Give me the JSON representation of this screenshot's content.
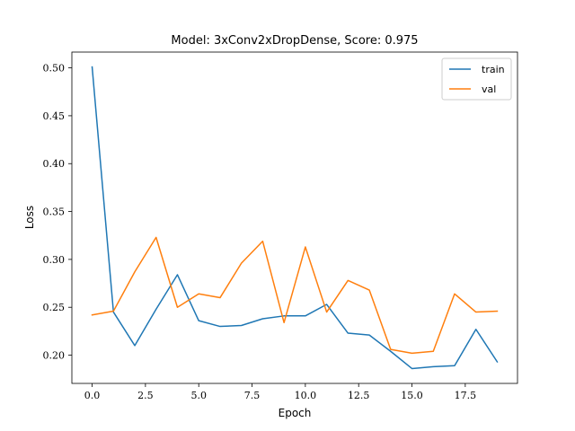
{
  "chart_data": {
    "type": "line",
    "title": "Model: 3xConv2xDropDense, Score: 0.975",
    "xlabel": "Epoch",
    "ylabel": "Loss",
    "x": [
      0,
      1,
      2,
      3,
      4,
      5,
      6,
      7,
      8,
      9,
      10,
      11,
      12,
      13,
      14,
      15,
      16,
      17,
      18,
      19
    ],
    "xlim": [
      -0.95,
      19.95
    ],
    "ylim": [
      0.1705,
      0.5165
    ],
    "xticks": [
      0,
      2.5,
      5,
      7.5,
      10,
      12.5,
      15,
      17.5
    ],
    "xtick_labels": [
      "0.0",
      "2.5",
      "5.0",
      "7.5",
      "10.0",
      "12.5",
      "15.0",
      "17.5"
    ],
    "yticks": [
      0.2,
      0.25,
      0.3,
      0.35,
      0.4,
      0.45,
      0.5
    ],
    "ytick_labels": [
      "0.20",
      "0.25",
      "0.30",
      "0.35",
      "0.40",
      "0.45",
      "0.50"
    ],
    "grid": false,
    "legend_position": "top-right",
    "series": [
      {
        "name": "train",
        "color": "#1f77b4",
        "values": [
          0.501,
          0.245,
          0.21,
          0.248,
          0.284,
          0.236,
          0.23,
          0.231,
          0.238,
          0.241,
          0.241,
          0.253,
          0.223,
          0.221,
          0.204,
          0.186,
          0.188,
          0.189,
          0.227,
          0.193
        ]
      },
      {
        "name": "val",
        "color": "#ff7f0e",
        "values": [
          0.242,
          0.246,
          0.287,
          0.323,
          0.25,
          0.264,
          0.26,
          0.296,
          0.319,
          0.234,
          0.313,
          0.245,
          0.278,
          0.268,
          0.206,
          0.202,
          0.204,
          0.264,
          0.245,
          0.246
        ]
      }
    ]
  }
}
